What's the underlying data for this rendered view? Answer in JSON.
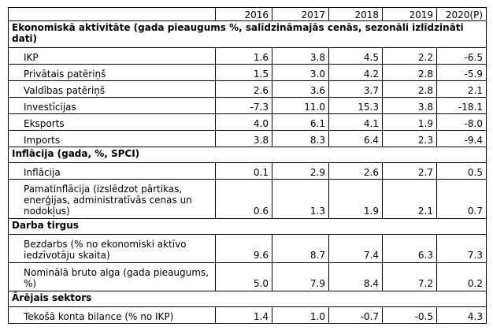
{
  "header": {
    "years": [
      "2016",
      "2017",
      "2018",
      "2019",
      "2020(P)"
    ]
  },
  "sections": [
    {
      "title": "Ekonomiskā aktivitāte (gada pieaugums %, salīdzināmajās cenās, sezonāli izlīdzināti dati)",
      "rows": [
        {
          "label": "IKP",
          "values": [
            "1.6",
            "3.8",
            "4.5",
            "2.2",
            "-6.5"
          ]
        },
        {
          "label": "Privātais patēriņš",
          "values": [
            "1.5",
            "3.0",
            "4.2",
            "2.8",
            "-5.9"
          ]
        },
        {
          "label": "Valdības patēriņš",
          "values": [
            "2.6",
            "3.6",
            "3.7",
            "2.8",
            "2.1"
          ]
        },
        {
          "label": "Investīcijas",
          "values": [
            "-7.3",
            "11.0",
            "15.3",
            "3.8",
            "-18.1"
          ]
        },
        {
          "label": "Eksports",
          "values": [
            "4.0",
            "6.1",
            "4.1",
            "1.9",
            "-8.0"
          ]
        },
        {
          "label": "Imports",
          "values": [
            "3.8",
            "8.3",
            "6.4",
            "2.3",
            "-9.4"
          ]
        }
      ]
    },
    {
      "title": "Inflācija (gada, %, SPCI)",
      "rows": [
        {
          "label": "Inflācija",
          "values": [
            "0.1",
            "2.9",
            "2.6",
            "2.7",
            "0.5"
          ]
        },
        {
          "label": "Pamatinflācija (izslēdzot pārtikas, enerģijas, administratīvās cenas un nodokļus)",
          "values": [
            "0.6",
            "1.3",
            "1.9",
            "2.1",
            "0.7"
          ]
        }
      ]
    },
    {
      "title": "Darba tirgus",
      "rows": [
        {
          "label": "Bezdarbs (% no ekonomiski aktīvo iedzīvotāju skaita)",
          "values": [
            "9.6",
            "8.7",
            "7.4",
            "6.3",
            "7.3"
          ]
        },
        {
          "label": "Nominālā bruto alga (gada pieaugums, %)",
          "values": [
            "5.0",
            "7.9",
            "8.4",
            "7.2",
            "0.2"
          ]
        }
      ]
    },
    {
      "title": "Ārējais sektors",
      "rows": [
        {
          "label": "Tekošā konta bilance (% no IKP)",
          "values": [
            "1.4",
            "1.0",
            "-0.7",
            "-0.5",
            "4.3"
          ]
        }
      ]
    }
  ]
}
